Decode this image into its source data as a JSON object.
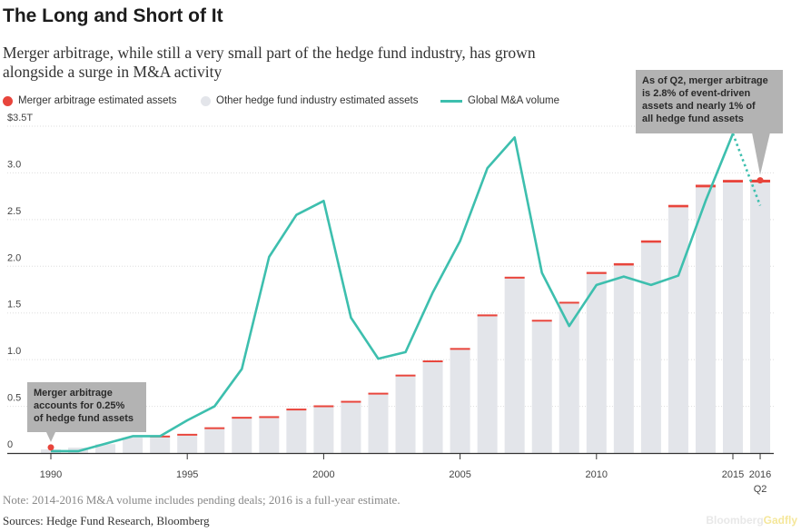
{
  "title": "The Long and Short of It",
  "subtitle": "Merger arbitrage, while still a very small part of the hedge fund industry, has grown alongside a surge in M&A activity",
  "legend": [
    {
      "label": "Merger arbitrage estimated assets",
      "color": "#e8453c",
      "kind": "dot"
    },
    {
      "label": "Other hedge fund industry estimated assets",
      "color": "#e3e5ea",
      "kind": "dot"
    },
    {
      "label": "Global M&A volume",
      "color": "#3dbfae",
      "kind": "line"
    }
  ],
  "note": "Note: 2014-2016 M&A volume includes pending deals; 2016 is a full-year estimate.",
  "source": "Sources: Hedge Fund Research, Bloomberg",
  "brand": {
    "part1": "Bloomberg",
    "part2": "Gadfly"
  },
  "colors": {
    "bar": "#e3e5ea",
    "merger": "#e8453c",
    "line": "#3dbfae",
    "annotation": "#b3b3b3",
    "axis": "#333333",
    "grid": "#dedede"
  },
  "chart_data": {
    "type": "bar",
    "grid": true,
    "legend_position": "top",
    "ylim": [
      0,
      3.5
    ],
    "y_ticks": [
      {
        "value": 0,
        "label": "0"
      },
      {
        "value": 0.5,
        "label": "0.5"
      },
      {
        "value": 1.0,
        "label": "1.0"
      },
      {
        "value": 1.5,
        "label": "1.5"
      },
      {
        "value": 2.0,
        "label": "2.0"
      },
      {
        "value": 2.5,
        "label": "2.5"
      },
      {
        "value": 3.0,
        "label": "3.0"
      },
      {
        "value": 3.5,
        "label": "$3.5T"
      }
    ],
    "categories": [
      "1990",
      "1991",
      "1992",
      "1993",
      "1994",
      "1995",
      "1996",
      "1997",
      "1998",
      "1999",
      "2000",
      "2001",
      "2002",
      "2003",
      "2004",
      "2005",
      "2006",
      "2007",
      "2008",
      "2009",
      "2010",
      "2011",
      "2012",
      "2013",
      "2014",
      "2015",
      "2016 Q2"
    ],
    "x_tick_labels": [
      {
        "index": 0,
        "label": "1990"
      },
      {
        "index": 5,
        "label": "1995"
      },
      {
        "index": 10,
        "label": "2000"
      },
      {
        "index": 15,
        "label": "2005"
      },
      {
        "index": 20,
        "label": "2010"
      },
      {
        "index": 25,
        "label": "2015"
      },
      {
        "index": 26,
        "label": "2016",
        "sublabel": "Q2"
      }
    ],
    "series": [
      {
        "name": "Other hedge fund industry estimated assets",
        "type": "bar",
        "values": [
          0.039,
          0.058,
          0.095,
          0.167,
          0.167,
          0.186,
          0.256,
          0.368,
          0.375,
          0.456,
          0.491,
          0.539,
          0.626,
          0.82,
          0.972,
          1.105,
          1.464,
          1.868,
          1.407,
          1.6,
          1.917,
          2.008,
          2.252,
          2.631,
          2.845,
          2.897,
          2.897
        ]
      },
      {
        "name": "Merger arbitrage estimated assets",
        "type": "bar",
        "values": [
          0.0001,
          0.0002,
          0.0003,
          0.0005,
          0.0006,
          0.0007,
          0.001,
          0.002,
          0.003,
          0.005,
          0.006,
          0.008,
          0.008,
          0.012,
          0.012,
          0.015,
          0.02,
          0.02,
          0.015,
          0.018,
          0.022,
          0.025,
          0.025,
          0.026,
          0.028,
          0.028,
          0.03
        ]
      },
      {
        "name": "Global M&A volume",
        "type": "line",
        "values": [
          0.02,
          0.02,
          0.1,
          0.18,
          0.18,
          0.35,
          0.5,
          0.9,
          2.1,
          2.55,
          2.7,
          1.45,
          1.01,
          1.08,
          1.72,
          2.27,
          3.05,
          3.38,
          1.93,
          1.36,
          1.8,
          1.89,
          1.8,
          1.9,
          2.7,
          3.42,
          2.65
        ],
        "dashed_from_index": 25
      }
    ],
    "annotations": [
      {
        "lines": [
          "Merger arbitrage",
          "accounts for 0.25%",
          "of hedge fund assets"
        ],
        "point_index": 0,
        "point_value": 0.06
      },
      {
        "lines": [
          "As of Q2, merger arbitrage",
          "is 2.8% of event-driven",
          "assets and nearly 1% of",
          "all hedge fund assets"
        ],
        "point_index": 26,
        "point_value": 2.92
      }
    ]
  }
}
